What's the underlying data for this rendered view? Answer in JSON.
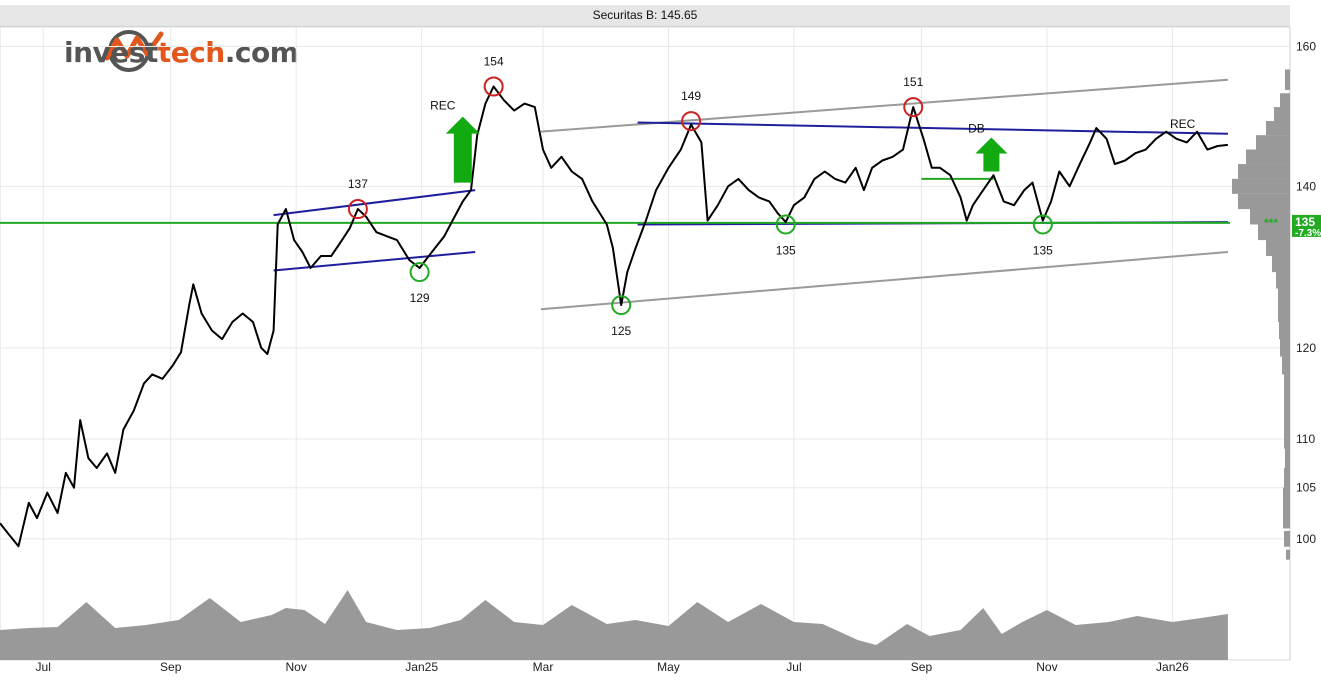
{
  "title_bar": {
    "text": "Securitas B: 145.65"
  },
  "logo": {
    "prefix": "invest",
    "accent": "tech",
    "suffix": ".com",
    "icon": "investtech-logo-icon"
  },
  "colors": {
    "price_line": "#000000",
    "channel_blue": "#1f1f9e",
    "channel_gray": "#9a9a9a",
    "support_green": "#22aa22",
    "volume_gray": "#999999",
    "top_marker": "#cc2222",
    "bottom_marker": "#22aa22",
    "signal_arrow": "#11aa11",
    "grid": "#e8e8e8"
  },
  "chart_data": {
    "type": "line",
    "title": "Securitas B: 145.65",
    "last_price": 145.65,
    "price_label": "135",
    "pct_label": "-7.3%",
    "marker_text": "***",
    "y_scale": "log",
    "ylim": [
      98,
      163
    ],
    "y_ticks": [
      {
        "value": 160,
        "label": "160"
      },
      {
        "value": 140,
        "label": "140"
      },
      {
        "value": 120,
        "label": "120"
      },
      {
        "value": 110,
        "label": "110"
      },
      {
        "value": 105,
        "label": "105"
      },
      {
        "value": 100,
        "label": "100"
      }
    ],
    "x_axis": {
      "start": "2024-06-10",
      "end": "2026-01-29",
      "ticks": [
        {
          "date": "2024-07-01",
          "label": "Jul"
        },
        {
          "date": "2024-09-01",
          "label": "Sep"
        },
        {
          "date": "2024-11-01",
          "label": "Nov"
        },
        {
          "date": "2025-01-01",
          "label": "Jan25"
        },
        {
          "date": "2025-03-01",
          "label": "Mar"
        },
        {
          "date": "2025-05-01",
          "label": "May"
        },
        {
          "date": "2025-07-01",
          "label": "Jul"
        },
        {
          "date": "2025-09-01",
          "label": "Sep"
        },
        {
          "date": "2025-11-01",
          "label": "Nov"
        },
        {
          "date": "2026-01-01",
          "label": "Jan26"
        }
      ]
    },
    "price": [
      [
        "2024-06-10",
        101.5
      ],
      [
        "2024-06-14",
        100.5
      ],
      [
        "2024-06-19",
        99.3
      ],
      [
        "2024-06-24",
        103.5
      ],
      [
        "2024-06-28",
        102.0
      ],
      [
        "2024-07-03",
        104.5
      ],
      [
        "2024-07-08",
        102.5
      ],
      [
        "2024-07-12",
        106.5
      ],
      [
        "2024-07-16",
        105.0
      ],
      [
        "2024-07-19",
        112.0
      ],
      [
        "2024-07-23",
        108.0
      ],
      [
        "2024-07-27",
        107.0
      ],
      [
        "2024-08-01",
        108.5
      ],
      [
        "2024-08-05",
        106.5
      ],
      [
        "2024-08-09",
        111.0
      ],
      [
        "2024-08-14",
        113.0
      ],
      [
        "2024-08-19",
        116.0
      ],
      [
        "2024-08-23",
        117.0
      ],
      [
        "2024-08-28",
        116.5
      ],
      [
        "2024-09-02",
        118.0
      ],
      [
        "2024-09-06",
        119.5
      ],
      [
        "2024-09-10",
        125.0
      ],
      [
        "2024-09-12",
        127.5
      ],
      [
        "2024-09-16",
        124.0
      ],
      [
        "2024-09-21",
        122.0
      ],
      [
        "2024-09-26",
        121.0
      ],
      [
        "2024-10-01",
        123.0
      ],
      [
        "2024-10-06",
        124.0
      ],
      [
        "2024-10-11",
        123.0
      ],
      [
        "2024-10-15",
        120.0
      ],
      [
        "2024-10-18",
        119.3
      ],
      [
        "2024-10-21",
        122.0
      ],
      [
        "2024-10-23",
        135.0
      ],
      [
        "2024-10-27",
        137.0
      ],
      [
        "2024-10-31",
        133.0
      ],
      [
        "2024-11-04",
        131.5
      ],
      [
        "2024-11-08",
        129.5
      ],
      [
        "2024-11-13",
        131.0
      ],
      [
        "2024-11-18",
        131.0
      ],
      [
        "2024-11-22",
        132.5
      ],
      [
        "2024-11-27",
        134.5
      ],
      [
        "2024-12-01",
        137.0
      ],
      [
        "2024-12-05",
        136.0
      ],
      [
        "2024-12-10",
        134.0
      ],
      [
        "2024-12-15",
        133.5
      ],
      [
        "2024-12-20",
        133.0
      ],
      [
        "2024-12-26",
        130.5
      ],
      [
        "2024-12-31",
        129.5
      ],
      [
        "2025-01-06",
        131.5
      ],
      [
        "2025-01-12",
        133.5
      ],
      [
        "2025-01-16",
        135.5
      ],
      [
        "2025-01-21",
        138.0
      ],
      [
        "2025-01-25",
        139.5
      ],
      [
        "2025-01-28",
        147.0
      ],
      [
        "2025-02-01",
        151.5
      ],
      [
        "2025-02-05",
        154.0
      ],
      [
        "2025-02-10",
        152.0
      ],
      [
        "2025-02-15",
        150.5
      ],
      [
        "2025-02-20",
        151.5
      ],
      [
        "2025-02-25",
        151.0
      ],
      [
        "2025-03-01",
        145.0
      ],
      [
        "2025-03-05",
        142.5
      ],
      [
        "2025-03-10",
        144.0
      ],
      [
        "2025-03-15",
        142.0
      ],
      [
        "2025-03-20",
        141.0
      ],
      [
        "2025-03-25",
        138.0
      ],
      [
        "2025-04-01",
        135.0
      ],
      [
        "2025-04-04",
        132.0
      ],
      [
        "2025-04-08",
        125.0
      ],
      [
        "2025-04-11",
        129.0
      ],
      [
        "2025-04-15",
        132.0
      ],
      [
        "2025-04-20",
        135.5
      ],
      [
        "2025-04-25",
        139.5
      ],
      [
        "2025-05-01",
        142.5
      ],
      [
        "2025-05-07",
        145.0
      ],
      [
        "2025-05-12",
        148.5
      ],
      [
        "2025-05-17",
        146.0
      ],
      [
        "2025-05-20",
        135.5
      ],
      [
        "2025-05-25",
        137.5
      ],
      [
        "2025-05-30",
        140.0
      ],
      [
        "2025-06-04",
        141.0
      ],
      [
        "2025-06-09",
        139.5
      ],
      [
        "2025-06-14",
        138.5
      ],
      [
        "2025-06-19",
        138.0
      ],
      [
        "2025-06-23",
        136.5
      ],
      [
        "2025-06-27",
        135.3
      ],
      [
        "2025-07-01",
        137.5
      ],
      [
        "2025-07-06",
        138.5
      ],
      [
        "2025-07-11",
        141.0
      ],
      [
        "2025-07-16",
        142.0
      ],
      [
        "2025-07-21",
        141.0
      ],
      [
        "2025-07-26",
        140.5
      ],
      [
        "2025-07-31",
        142.5
      ],
      [
        "2025-08-04",
        139.5
      ],
      [
        "2025-08-08",
        142.5
      ],
      [
        "2025-08-13",
        143.5
      ],
      [
        "2025-08-18",
        144.0
      ],
      [
        "2025-08-23",
        145.0
      ],
      [
        "2025-08-28",
        151.0
      ],
      [
        "2025-09-02",
        146.5
      ],
      [
        "2025-09-06",
        142.5
      ],
      [
        "2025-09-10",
        142.5
      ],
      [
        "2025-09-15",
        141.5
      ],
      [
        "2025-09-20",
        138.5
      ],
      [
        "2025-09-23",
        135.5
      ],
      [
        "2025-09-26",
        137.5
      ],
      [
        "2025-10-01",
        139.5
      ],
      [
        "2025-10-06",
        141.5
      ],
      [
        "2025-10-11",
        138.0
      ],
      [
        "2025-10-16",
        137.5
      ],
      [
        "2025-10-21",
        139.5
      ],
      [
        "2025-10-25",
        140.5
      ],
      [
        "2025-10-30",
        135.5
      ],
      [
        "2025-11-03",
        138.0
      ],
      [
        "2025-11-07",
        142.0
      ],
      [
        "2025-11-12",
        140.0
      ],
      [
        "2025-11-17",
        143.0
      ],
      [
        "2025-11-22",
        146.0
      ],
      [
        "2025-11-25",
        148.0
      ],
      [
        "2025-11-30",
        146.5
      ],
      [
        "2025-12-04",
        143.0
      ],
      [
        "2025-12-09",
        143.5
      ],
      [
        "2025-12-14",
        144.5
      ],
      [
        "2025-12-19",
        145.0
      ],
      [
        "2025-12-24",
        146.5
      ],
      [
        "2025-12-29",
        147.5
      ],
      [
        "2026-01-03",
        146.5
      ],
      [
        "2026-01-08",
        146.0
      ],
      [
        "2026-01-13",
        147.5
      ],
      [
        "2026-01-18",
        145.0
      ],
      [
        "2026-01-23",
        145.5
      ],
      [
        "2026-01-28",
        145.65
      ]
    ],
    "trend_lines": [
      {
        "color": "channel_blue",
        "from": [
          "2024-10-21",
          136.2
        ],
        "to": [
          "2025-01-27",
          139.5
        ]
      },
      {
        "color": "channel_blue",
        "from": [
          "2024-10-21",
          129.2
        ],
        "to": [
          "2025-01-27",
          131.5
        ]
      },
      {
        "color": "channel_gray",
        "from": [
          "2025-02-28",
          147.5
        ],
        "to": [
          "2026-01-28",
          155.0
        ]
      },
      {
        "color": "channel_gray",
        "from": [
          "2025-02-28",
          124.5
        ],
        "to": [
          "2026-01-28",
          131.5
        ]
      },
      {
        "color": "channel_blue",
        "from": [
          "2025-04-16",
          148.8
        ],
        "to": [
          "2026-01-28",
          147.2
        ]
      },
      {
        "color": "channel_blue",
        "from": [
          "2025-04-16",
          135.0
        ],
        "to": [
          "2026-01-28",
          135.3
        ]
      },
      {
        "color": "support_green",
        "from": [
          "2024-06-10",
          135.2
        ],
        "to": [
          "2026-01-29",
          135.2
        ]
      },
      {
        "color": "support_green",
        "from": [
          "2025-09-01",
          141.0
        ],
        "to": [
          "2025-10-06",
          141.0
        ]
      }
    ],
    "tops": [
      {
        "date": "2024-12-01",
        "value": 137,
        "label": "137"
      },
      {
        "date": "2025-02-05",
        "value": 154,
        "label": "154"
      },
      {
        "date": "2025-05-12",
        "value": 149,
        "label": "149"
      },
      {
        "date": "2025-08-28",
        "value": 151,
        "label": "151"
      }
    ],
    "bottoms": [
      {
        "date": "2024-12-31",
        "value": 129,
        "label": "129"
      },
      {
        "date": "2025-04-08",
        "value": 125,
        "label": "125"
      },
      {
        "date": "2025-06-27",
        "value": 135,
        "label": "135"
      },
      {
        "date": "2025-10-30",
        "value": 135,
        "label": "135"
      }
    ],
    "signals": [
      {
        "type": "buy",
        "date": "2025-01-21",
        "value": 140.5,
        "label": "REC"
      },
      {
        "type": "buy",
        "date": "2025-10-05",
        "value": 142.0,
        "label": "DB"
      },
      {
        "type": "text",
        "date": "2026-01-06",
        "value": 148.0,
        "label": "REC"
      }
    ],
    "volume_profile": [
      [
        155,
        5
      ],
      [
        152,
        10
      ],
      [
        150,
        16
      ],
      [
        148,
        24
      ],
      [
        146,
        34
      ],
      [
        144,
        44
      ],
      [
        142,
        52
      ],
      [
        140,
        58
      ],
      [
        138,
        52
      ],
      [
        136,
        40
      ],
      [
        134,
        32
      ],
      [
        132,
        24
      ],
      [
        130,
        18
      ],
      [
        128,
        14
      ],
      [
        126,
        12
      ],
      [
        124,
        12
      ],
      [
        122,
        11
      ],
      [
        120,
        10
      ],
      [
        118,
        8
      ],
      [
        116,
        6
      ],
      [
        114,
        6
      ],
      [
        112,
        6
      ],
      [
        110,
        6
      ],
      [
        108,
        5
      ],
      [
        106,
        6
      ],
      [
        104,
        7
      ],
      [
        102,
        7
      ],
      [
        100,
        6
      ],
      [
        98.5,
        4
      ]
    ],
    "volume_envelope": [
      [
        "2024-06-10",
        0.3
      ],
      [
        "2024-06-24",
        0.32
      ],
      [
        "2024-07-08",
        0.33
      ],
      [
        "2024-07-22",
        0.58
      ],
      [
        "2024-08-05",
        0.32
      ],
      [
        "2024-08-20",
        0.35
      ],
      [
        "2024-09-05",
        0.4
      ],
      [
        "2024-09-20",
        0.62
      ],
      [
        "2024-10-05",
        0.38
      ],
      [
        "2024-10-20",
        0.45
      ],
      [
        "2024-10-27",
        0.52
      ],
      [
        "2024-11-05",
        0.5
      ],
      [
        "2024-11-15",
        0.36
      ],
      [
        "2024-11-26",
        0.7
      ],
      [
        "2024-12-05",
        0.38
      ],
      [
        "2024-12-20",
        0.3
      ],
      [
        "2025-01-05",
        0.32
      ],
      [
        "2025-01-20",
        0.4
      ],
      [
        "2025-02-01",
        0.6
      ],
      [
        "2025-02-15",
        0.38
      ],
      [
        "2025-03-01",
        0.35
      ],
      [
        "2025-03-15",
        0.55
      ],
      [
        "2025-04-01",
        0.36
      ],
      [
        "2025-04-15",
        0.4
      ],
      [
        "2025-05-01",
        0.34
      ],
      [
        "2025-05-15",
        0.58
      ],
      [
        "2025-05-30",
        0.38
      ],
      [
        "2025-06-15",
        0.56
      ],
      [
        "2025-07-01",
        0.38
      ],
      [
        "2025-07-15",
        0.36
      ],
      [
        "2025-08-01",
        0.2
      ],
      [
        "2025-08-10",
        0.15
      ],
      [
        "2025-08-25",
        0.36
      ],
      [
        "2025-09-05",
        0.24
      ],
      [
        "2025-09-20",
        0.3
      ],
      [
        "2025-10-01",
        0.52
      ],
      [
        "2025-10-10",
        0.26
      ],
      [
        "2025-10-20",
        0.38
      ],
      [
        "2025-11-01",
        0.5
      ],
      [
        "2025-11-15",
        0.35
      ],
      [
        "2025-12-01",
        0.38
      ],
      [
        "2025-12-15",
        0.44
      ],
      [
        "2026-01-01",
        0.38
      ],
      [
        "2026-01-15",
        0.42
      ],
      [
        "2026-01-28",
        0.46
      ]
    ]
  }
}
